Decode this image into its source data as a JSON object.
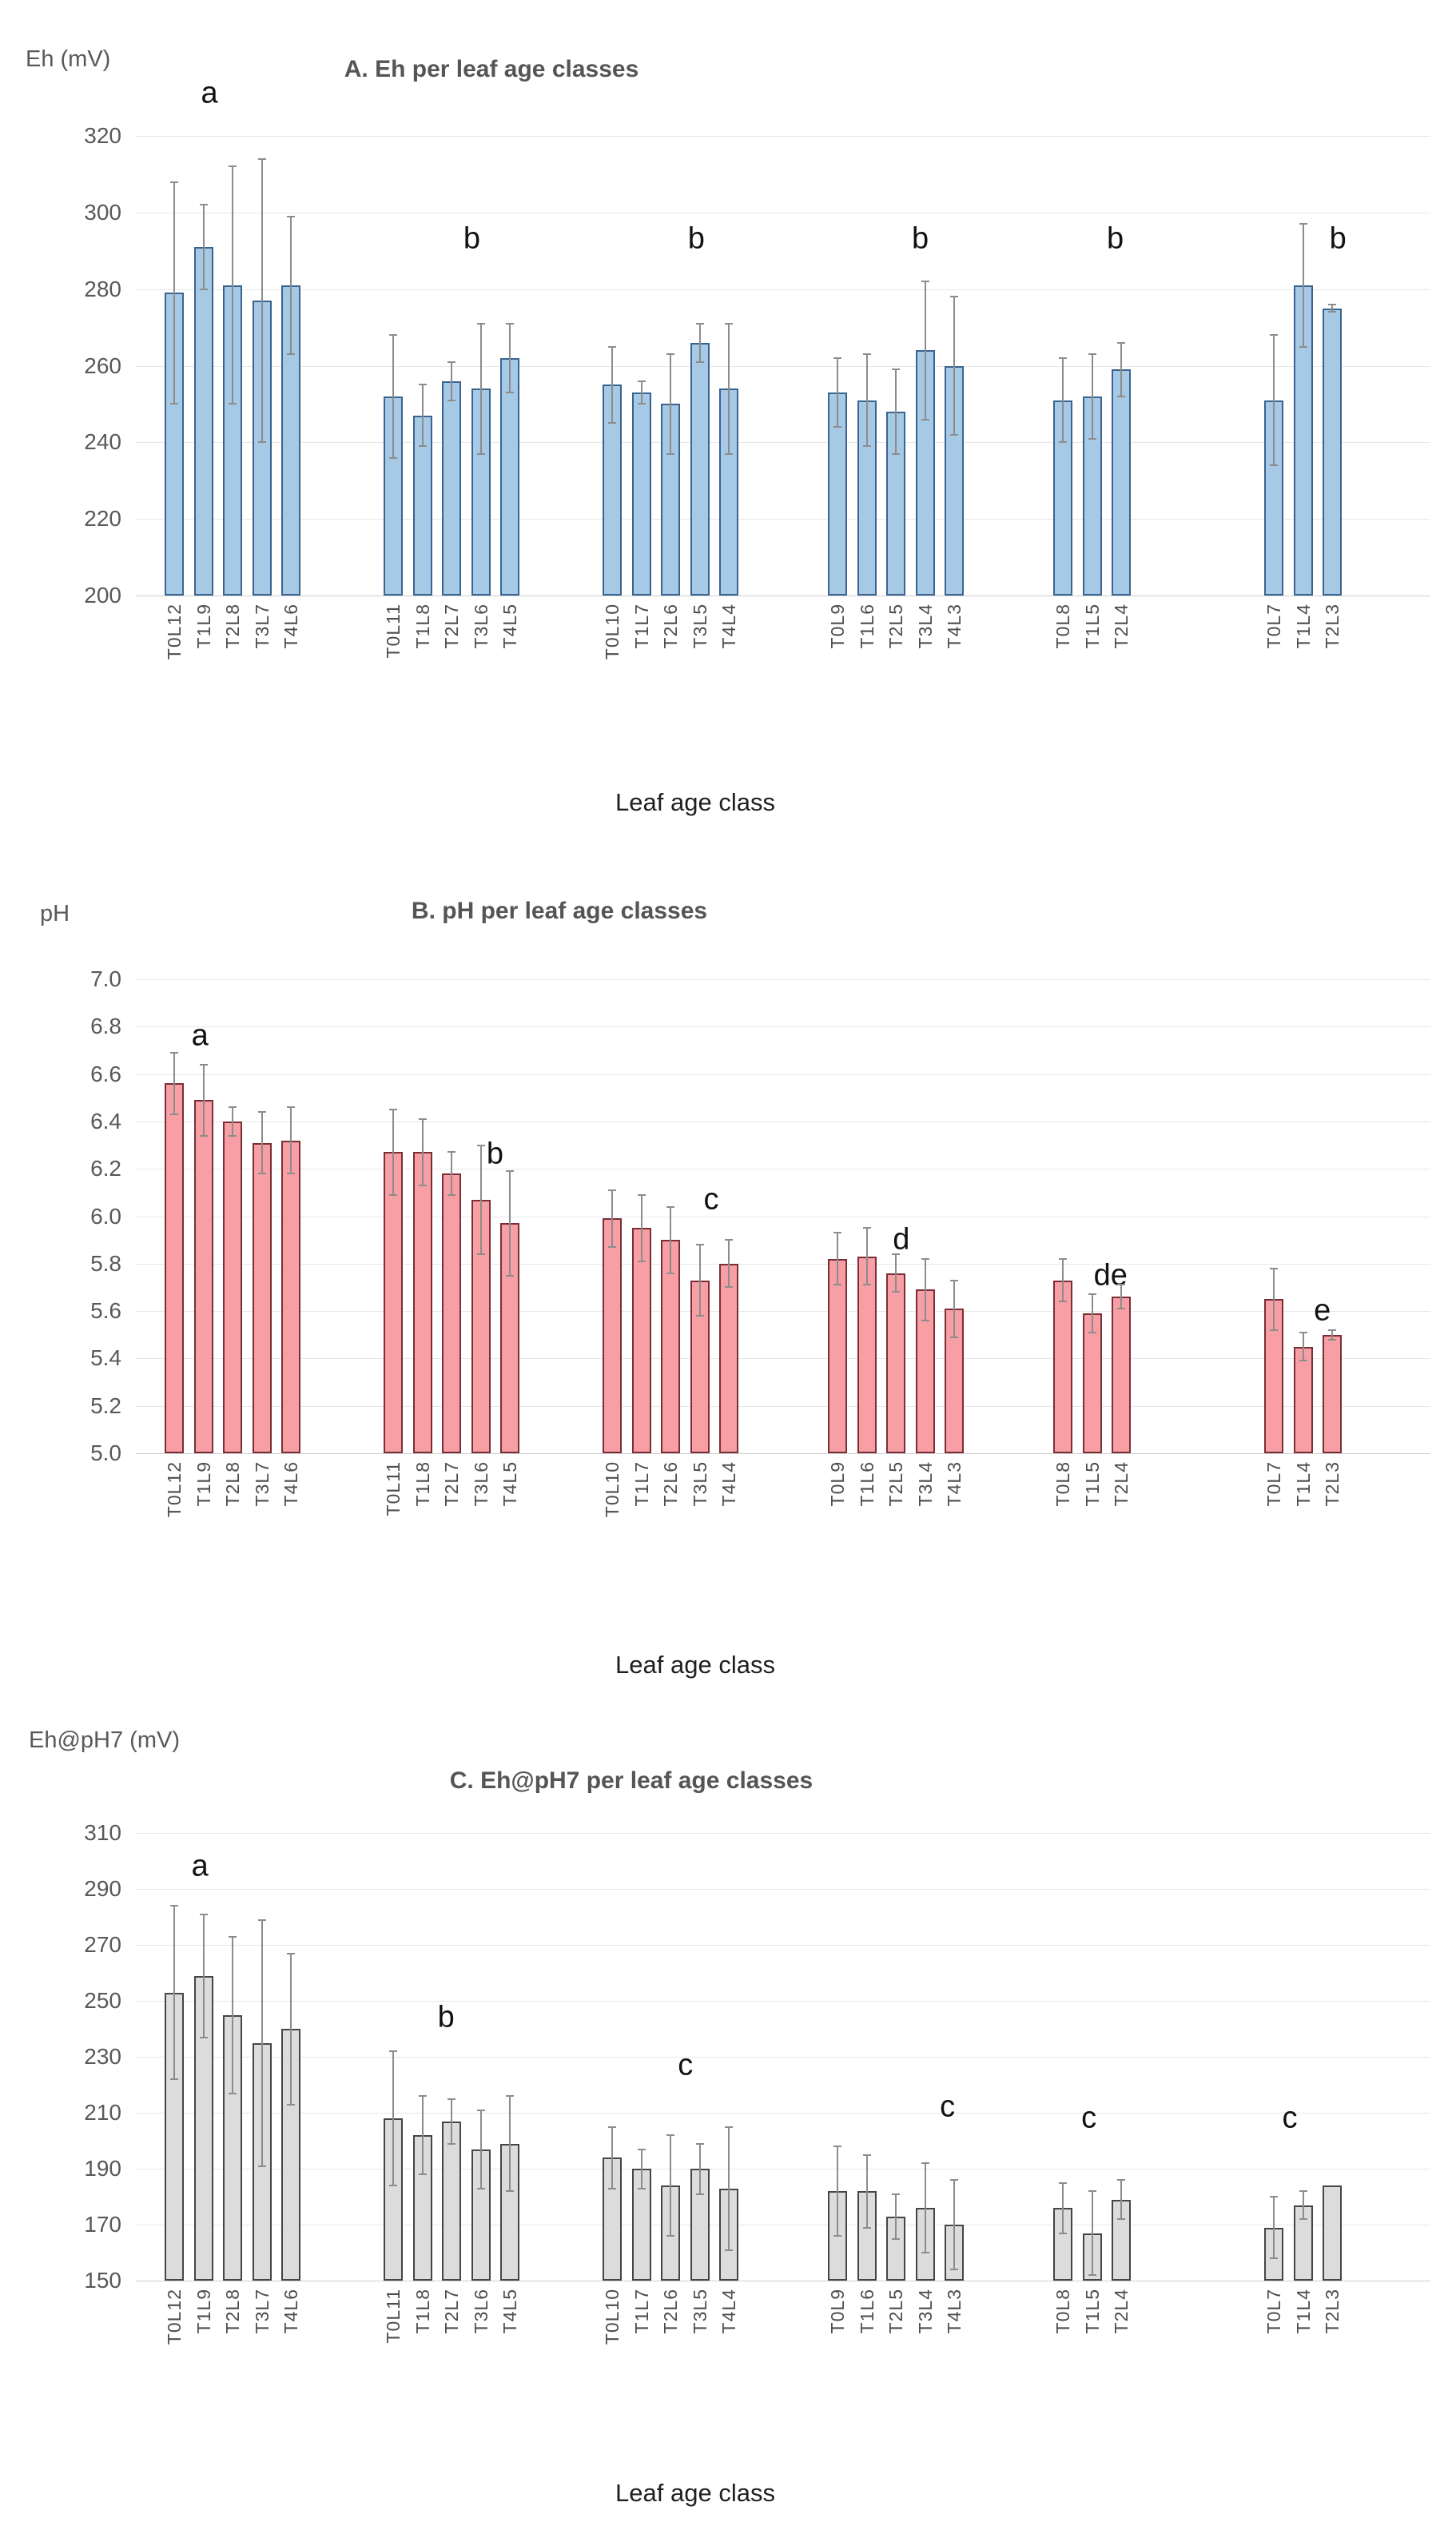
{
  "chart_data": [
    {
      "id": "chart-a",
      "type": "bar",
      "title": "A. Eh per leaf age classes",
      "unit_label": "Eh (mV)",
      "xlabel": "Leaf age class",
      "ylim": [
        200,
        320
      ],
      "ytick_labels": [
        "320",
        "300",
        "280",
        "260",
        "240",
        "220",
        "200"
      ],
      "grid": true,
      "legend": "none",
      "bar_fill": "#a6c9e6",
      "bar_border": "#3a648f",
      "error_color": "#8c8c8c",
      "groups": [
        {
          "letter": "a",
          "letter_value": 331,
          "letter_x": 0.33,
          "bars": [
            {
              "label": "T0L12",
              "value": 279,
              "err_top": 308
            },
            {
              "label": "T1L9",
              "value": 291,
              "err_top": 302
            },
            {
              "label": "T2L8",
              "value": 281,
              "err_top": 312
            },
            {
              "label": "T3L7",
              "value": 277,
              "err_top": 314
            },
            {
              "label": "T4L6",
              "value": 281,
              "err_top": 299
            }
          ]
        },
        {
          "letter": "b",
          "letter_value": 293,
          "letter_x": 0.65,
          "bars": [
            {
              "label": "T0L11",
              "value": 252,
              "err_top": 268
            },
            {
              "label": "T1L8",
              "value": 247,
              "err_top": 255
            },
            {
              "label": "T2L7",
              "value": 256,
              "err_top": 261
            },
            {
              "label": "T3L6",
              "value": 254,
              "err_top": 271
            },
            {
              "label": "T4L5",
              "value": 262,
              "err_top": 271
            }
          ]
        },
        {
          "letter": "b",
          "letter_value": 293,
          "letter_x": 0.69,
          "bars": [
            {
              "label": "T0L10",
              "value": 255,
              "err_top": 265
            },
            {
              "label": "T1L7",
              "value": 253,
              "err_top": 256
            },
            {
              "label": "T2L6",
              "value": 250,
              "err_top": 263
            },
            {
              "label": "T3L5",
              "value": 266,
              "err_top": 271
            },
            {
              "label": "T4L4",
              "value": 254,
              "err_top": 271
            }
          ]
        },
        {
          "letter": "b",
          "letter_value": 293,
          "letter_x": 0.68,
          "bars": [
            {
              "label": "T0L9",
              "value": 253,
              "err_top": 262
            },
            {
              "label": "T1L6",
              "value": 251,
              "err_top": 263
            },
            {
              "label": "T2L5",
              "value": 248,
              "err_top": 259
            },
            {
              "label": "T3L4",
              "value": 264,
              "err_top": 282
            },
            {
              "label": "T4L3",
              "value": 260,
              "err_top": 278
            }
          ]
        },
        {
          "letter": "b",
          "letter_value": 293,
          "letter_x": 0.8,
          "bars": [
            {
              "label": "T0L8",
              "value": 251,
              "err_top": 262
            },
            {
              "label": "T1L5",
              "value": 252,
              "err_top": 263
            },
            {
              "label": "T2L4",
              "value": 259,
              "err_top": 266
            }
          ]
        },
        {
          "letter": "b",
          "letter_value": 293,
          "letter_x": 0.95,
          "bars": [
            {
              "label": "T0L7",
              "value": 251,
              "err_top": 268
            },
            {
              "label": "T1L4",
              "value": 281,
              "err_top": 297
            },
            {
              "label": "T2L3",
              "value": 275,
              "err_top": 276
            }
          ]
        }
      ]
    },
    {
      "id": "chart-b",
      "type": "bar",
      "title": "B. pH per leaf age classes",
      "unit_label": "pH",
      "xlabel": "Leaf age class",
      "ylim": [
        5.0,
        7.0
      ],
      "ytick_labels": [
        "7.0",
        "6.8",
        "6.6",
        "6.4",
        "6.2",
        "6.0",
        "5.8",
        "5.6",
        "5.4",
        "5.2",
        "5.0"
      ],
      "grid": true,
      "legend": "none",
      "bar_fill": "#f89fa6",
      "bar_border": "#7a2e36",
      "error_color": "#8c8c8c",
      "groups": [
        {
          "letter": "a",
          "letter_value": 6.76,
          "letter_x": 0.26,
          "bars": [
            {
              "label": "T0L12",
              "value": 6.56,
              "err_top": 6.69
            },
            {
              "label": "T1L9",
              "value": 6.49,
              "err_top": 6.64
            },
            {
              "label": "T2L8",
              "value": 6.4,
              "err_top": 6.46
            },
            {
              "label": "T3L7",
              "value": 6.31,
              "err_top": 6.44
            },
            {
              "label": "T4L6",
              "value": 6.32,
              "err_top": 6.46
            }
          ]
        },
        {
          "letter": "b",
          "letter_value": 6.26,
          "letter_x": 0.82,
          "bars": [
            {
              "label": "T0L11",
              "value": 6.27,
              "err_top": 6.45
            },
            {
              "label": "T1L8",
              "value": 6.27,
              "err_top": 6.41
            },
            {
              "label": "T2L7",
              "value": 6.18,
              "err_top": 6.27
            },
            {
              "label": "T3L6",
              "value": 6.07,
              "err_top": 6.3
            },
            {
              "label": "T4L5",
              "value": 5.97,
              "err_top": 6.19
            }
          ]
        },
        {
          "letter": "c",
          "letter_value": 6.07,
          "letter_x": 0.8,
          "bars": [
            {
              "label": "T0L10",
              "value": 5.99,
              "err_top": 6.11
            },
            {
              "label": "T1L7",
              "value": 5.95,
              "err_top": 6.09
            },
            {
              "label": "T2L6",
              "value": 5.9,
              "err_top": 6.04
            },
            {
              "label": "T3L5",
              "value": 5.73,
              "err_top": 5.88
            },
            {
              "label": "T4L4",
              "value": 5.8,
              "err_top": 5.9
            }
          ]
        },
        {
          "letter": "d",
          "letter_value": 5.9,
          "letter_x": 0.54,
          "bars": [
            {
              "label": "T0L9",
              "value": 5.82,
              "err_top": 5.93
            },
            {
              "label": "T1L6",
              "value": 5.83,
              "err_top": 5.95
            },
            {
              "label": "T2L5",
              "value": 5.76,
              "err_top": 5.84
            },
            {
              "label": "T3L4",
              "value": 5.69,
              "err_top": 5.82
            },
            {
              "label": "T4L3",
              "value": 5.61,
              "err_top": 5.73
            }
          ]
        },
        {
          "letter": "de",
          "letter_value": 5.75,
          "letter_x": 0.74,
          "bars": [
            {
              "label": "T0L8",
              "value": 5.73,
              "err_top": 5.82
            },
            {
              "label": "T1L5",
              "value": 5.59,
              "err_top": 5.67
            },
            {
              "label": "T2L4",
              "value": 5.66,
              "err_top": 5.71
            }
          ]
        },
        {
          "letter": "e",
          "letter_value": 5.6,
          "letter_x": 0.75,
          "bars": [
            {
              "label": "T0L7",
              "value": 5.65,
              "err_top": 5.78
            },
            {
              "label": "T1L4",
              "value": 5.45,
              "err_top": 5.51
            },
            {
              "label": "T2L3",
              "value": 5.5,
              "err_top": 5.52
            }
          ]
        }
      ]
    },
    {
      "id": "chart-c",
      "type": "bar",
      "title": "C. Eh@pH7 per leaf age classes",
      "unit_label": "Eh@pH7 (mV)",
      "xlabel": "Leaf age class",
      "ylim": [
        150,
        310
      ],
      "ytick_labels": [
        "310",
        "290",
        "270",
        "250",
        "230",
        "210",
        "190",
        "170",
        "150"
      ],
      "grid": true,
      "legend": "none",
      "bar_fill": "#dcdcdc",
      "bar_border": "#454545",
      "error_color": "#8c8c8c",
      "groups": [
        {
          "letter": "a",
          "letter_value": 298,
          "letter_x": 0.26,
          "bars": [
            {
              "label": "T0L12",
              "value": 253,
              "err_top": 284
            },
            {
              "label": "T1L9",
              "value": 259,
              "err_top": 281
            },
            {
              "label": "T2L8",
              "value": 245,
              "err_top": 273
            },
            {
              "label": "T3L7",
              "value": 235,
              "err_top": 279
            },
            {
              "label": "T4L6",
              "value": 240,
              "err_top": 267
            }
          ]
        },
        {
          "letter": "b",
          "letter_value": 244,
          "letter_x": 0.46,
          "bars": [
            {
              "label": "T0L11",
              "value": 208,
              "err_top": 232
            },
            {
              "label": "T1L8",
              "value": 202,
              "err_top": 216
            },
            {
              "label": "T2L7",
              "value": 207,
              "err_top": 215
            },
            {
              "label": "T3L6",
              "value": 197,
              "err_top": 211
            },
            {
              "label": "T4L5",
              "value": 199,
              "err_top": 216
            }
          ]
        },
        {
          "letter": "c",
          "letter_value": 227,
          "letter_x": 0.61,
          "bars": [
            {
              "label": "T0L10",
              "value": 194,
              "err_top": 205
            },
            {
              "label": "T1L7",
              "value": 190,
              "err_top": 197
            },
            {
              "label": "T2L6",
              "value": 184,
              "err_top": 202
            },
            {
              "label": "T3L5",
              "value": 190,
              "err_top": 199
            },
            {
              "label": "T4L4",
              "value": 183,
              "err_top": 205
            }
          ]
        },
        {
          "letter": "c",
          "letter_value": 212,
          "letter_x": 0.88,
          "bars": [
            {
              "label": "T0L9",
              "value": 182,
              "err_top": 198
            },
            {
              "label": "T1L6",
              "value": 182,
              "err_top": 195
            },
            {
              "label": "T2L5",
              "value": 173,
              "err_top": 181
            },
            {
              "label": "T3L4",
              "value": 176,
              "err_top": 192
            },
            {
              "label": "T4L3",
              "value": 170,
              "err_top": 186
            }
          ]
        },
        {
          "letter": "c",
          "letter_value": 208,
          "letter_x": 0.46,
          "bars": [
            {
              "label": "T0L8",
              "value": 176,
              "err_top": 185
            },
            {
              "label": "T1L5",
              "value": 167,
              "err_top": 182
            },
            {
              "label": "T2L4",
              "value": 179,
              "err_top": 186
            }
          ]
        },
        {
          "letter": "c",
          "letter_value": 208,
          "letter_x": 0.33,
          "bars": [
            {
              "label": "T0L7",
              "value": 169,
              "err_top": 180
            },
            {
              "label": "T1L4",
              "value": 177,
              "err_top": 182
            },
            {
              "label": "T2L3",
              "value": 184,
              "err_top": 184
            }
          ]
        }
      ]
    }
  ]
}
